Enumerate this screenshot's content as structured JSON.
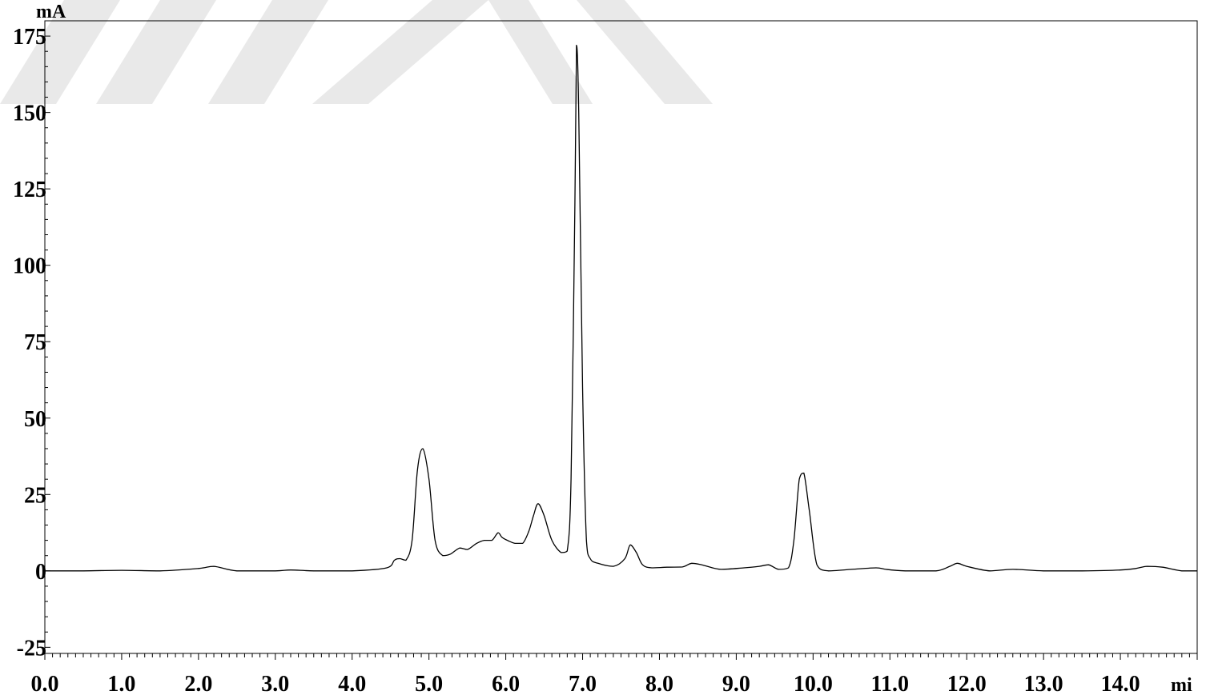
{
  "chart_data": {
    "type": "line",
    "title": "",
    "xlabel": "mi",
    "ylabel": "mA",
    "xlim": [
      0.0,
      15.0
    ],
    "ylim": [
      -27,
      180
    ],
    "x_ticks": [
      {
        "value": 0.0,
        "label": "0.0"
      },
      {
        "value": 1.0,
        "label": "1.0"
      },
      {
        "value": 2.0,
        "label": "2.0"
      },
      {
        "value": 3.0,
        "label": "3.0"
      },
      {
        "value": 4.0,
        "label": "4.0"
      },
      {
        "value": 5.0,
        "label": "5.0"
      },
      {
        "value": 6.0,
        "label": "6.0"
      },
      {
        "value": 7.0,
        "label": "7.0"
      },
      {
        "value": 8.0,
        "label": "8.0"
      },
      {
        "value": 9.0,
        "label": "9.0"
      },
      {
        "value": 10.0,
        "label": "10.0"
      },
      {
        "value": 11.0,
        "label": "11.0"
      },
      {
        "value": 12.0,
        "label": "12.0"
      },
      {
        "value": 13.0,
        "label": "13.0"
      },
      {
        "value": 14.0,
        "label": "14.0"
      }
    ],
    "y_ticks": [
      {
        "value": -25,
        "label": "-25"
      },
      {
        "value": 0,
        "label": "0"
      },
      {
        "value": 25,
        "label": "25"
      },
      {
        "value": 50,
        "label": "50"
      },
      {
        "value": 75,
        "label": "75"
      },
      {
        "value": 100,
        "label": "100"
      },
      {
        "value": 125,
        "label": "125"
      },
      {
        "value": 150,
        "label": "150"
      },
      {
        "value": 175,
        "label": "175"
      }
    ],
    "grid": false,
    "line_color": "#000000",
    "series": [
      {
        "x": [
          0.0,
          0.5,
          1.0,
          1.5,
          2.0,
          2.2,
          2.5,
          3.0,
          3.2,
          3.5,
          4.0,
          4.45,
          4.55,
          4.62,
          4.7,
          4.78,
          4.85,
          4.92,
          5.0,
          5.08,
          5.18,
          5.28,
          5.4,
          5.5,
          5.62,
          5.72,
          5.82,
          5.9,
          5.95,
          6.02,
          6.12,
          6.22,
          6.3,
          6.36,
          6.42,
          6.5,
          6.6,
          6.72,
          6.8,
          6.85,
          6.9,
          6.92,
          6.95,
          7.0,
          7.05,
          7.1,
          7.2,
          7.4,
          7.55,
          7.62,
          7.7,
          7.78,
          7.9,
          8.1,
          8.3,
          8.42,
          8.55,
          8.8,
          9.1,
          9.3,
          9.42,
          9.55,
          9.68,
          9.75,
          9.82,
          9.88,
          9.95,
          10.05,
          10.2,
          10.5,
          10.82,
          10.95,
          11.2,
          11.6,
          11.78,
          11.88,
          12.0,
          12.3,
          12.6,
          13.0,
          13.5,
          14.0,
          14.2,
          14.35,
          14.55,
          14.8,
          15.0
        ],
        "y": [
          0,
          0,
          0.2,
          0,
          0.8,
          1.5,
          0,
          0,
          0.3,
          0,
          0,
          1,
          3.5,
          4,
          3.5,
          10,
          33,
          40,
          30,
          10,
          5,
          5.5,
          7.5,
          7,
          9,
          10,
          10,
          12.5,
          11,
          10,
          9,
          9,
          13,
          18,
          22,
          18,
          10,
          6,
          6.5,
          30,
          120,
          172,
          150,
          60,
          10,
          4,
          2.5,
          1.5,
          4,
          8.5,
          6,
          2,
          1,
          1.2,
          1.3,
          2.5,
          2,
          0.5,
          1,
          1.5,
          2,
          0.5,
          1,
          10,
          30,
          32,
          20,
          2,
          0,
          0.5,
          1,
          0.5,
          0,
          0,
          1.5,
          2.5,
          1.5,
          0,
          0.5,
          0,
          0,
          0.3,
          0.8,
          1.5,
          1.2,
          0,
          0
        ]
      }
    ]
  }
}
